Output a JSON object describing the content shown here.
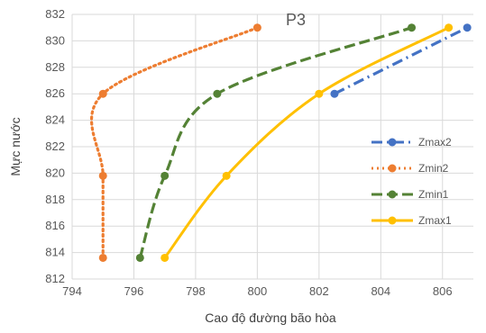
{
  "chart_data": {
    "type": "scatter",
    "title": "P3",
    "xlabel": "Cao độ đường bão hòa",
    "ylabel": "Mực nước",
    "xlim": [
      794,
      807
    ],
    "ylim": [
      812,
      832
    ],
    "xticks": [
      "794",
      "796",
      "798",
      "800",
      "802",
      "804",
      "806"
    ],
    "yticks": [
      "812",
      "814",
      "816",
      "818",
      "820",
      "822",
      "824",
      "826",
      "828",
      "830",
      "832"
    ],
    "grid": true,
    "legend_position": "right",
    "series": [
      {
        "name": "Zmax2",
        "color": "#4472C4",
        "line_style": "dash-dot",
        "smooth": false,
        "points": [
          [
            802.5,
            826
          ],
          [
            806.8,
            831
          ]
        ]
      },
      {
        "name": "Zmin2",
        "color": "#ED7D31",
        "line_style": "dotted",
        "smooth": true,
        "points": [
          [
            795.0,
            813.6
          ],
          [
            795.0,
            819.8
          ],
          [
            795.0,
            826
          ],
          [
            800.0,
            831
          ]
        ]
      },
      {
        "name": "Zmin1",
        "color": "#548235",
        "line_style": "dashed",
        "smooth": true,
        "points": [
          [
            796.2,
            813.6
          ],
          [
            797.0,
            819.8
          ],
          [
            798.7,
            826
          ],
          [
            805.0,
            831
          ]
        ]
      },
      {
        "name": "Zmax1",
        "color": "#FFC000",
        "line_style": "solid",
        "smooth": true,
        "points": [
          [
            797.0,
            813.6
          ],
          [
            799.0,
            819.8
          ],
          [
            802.0,
            826
          ],
          [
            806.2,
            831
          ]
        ]
      }
    ]
  }
}
